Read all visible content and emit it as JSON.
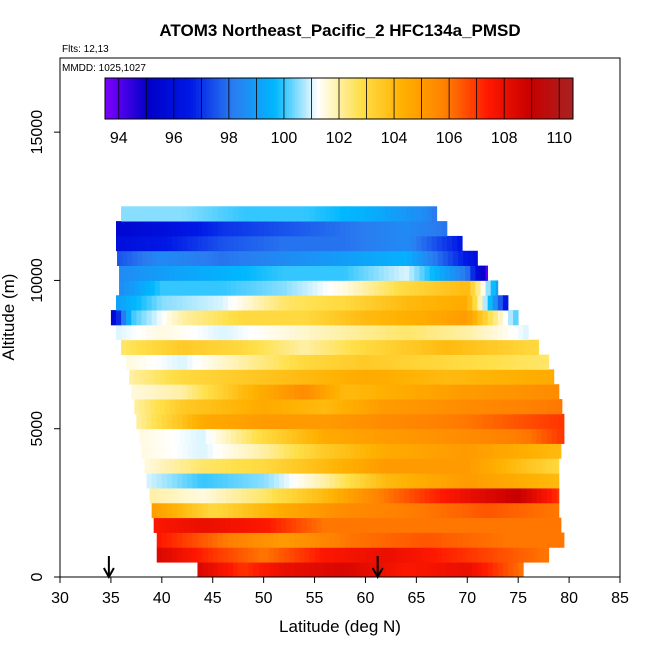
{
  "chart_data": {
    "type": "heatmap",
    "title": "ATOM3 Northeast_Pacific_2 HFC134a_PMSD",
    "flights_label": "Flts: 12,13",
    "dates_label": "MMDD: 1025,1027",
    "xlabel": "Latitude (deg N)",
    "ylabel": "Altitude (m)",
    "xlim": [
      30,
      85
    ],
    "ylim": [
      0,
      17500
    ],
    "xticks": [
      "30",
      "35",
      "40",
      "45",
      "50",
      "55",
      "60",
      "65",
      "70",
      "75",
      "80",
      "85"
    ],
    "yticks": [
      "0",
      "5000",
      "10000",
      "15000"
    ],
    "colorbar": {
      "range": [
        93.5,
        110.5
      ],
      "tick_labels": [
        "94",
        "96",
        "98",
        "100",
        "102",
        "104",
        "106",
        "108",
        "110"
      ],
      "colors": [
        "#8000ff",
        "#0000c8",
        "#0018e6",
        "#2a7cf0",
        "#00b8ff",
        "#ffffff",
        "#ffe04a",
        "#ffb000",
        "#ff8000",
        "#ff1800",
        "#c80000",
        "#a82222"
      ]
    },
    "arrows_lat": [
      34.8,
      61.2
    ],
    "altitude_bin_m": 500,
    "bands": [
      {
        "alt": 250,
        "lat_min": 43.5,
        "lat_max": 75.5,
        "values": [
          {
            "lat": 43.5,
            "v": 108.5
          },
          {
            "lat": 48,
            "v": 107
          },
          {
            "lat": 52,
            "v": 108
          },
          {
            "lat": 58,
            "v": 108.5
          },
          {
            "lat": 64,
            "v": 107.5
          },
          {
            "lat": 70,
            "v": 108
          },
          {
            "lat": 75.5,
            "v": 106
          }
        ]
      },
      {
        "alt": 750,
        "lat_min": 39.5,
        "lat_max": 78,
        "values": [
          {
            "lat": 39.5,
            "v": 108.5
          },
          {
            "lat": 45,
            "v": 107
          },
          {
            "lat": 50,
            "v": 106
          },
          {
            "lat": 56,
            "v": 107.5
          },
          {
            "lat": 62,
            "v": 108
          },
          {
            "lat": 70,
            "v": 107
          },
          {
            "lat": 78,
            "v": 106
          }
        ]
      },
      {
        "alt": 1250,
        "lat_min": 39.5,
        "lat_max": 79.5,
        "values": [
          {
            "lat": 39.5,
            "v": 107.5
          },
          {
            "lat": 46,
            "v": 106
          },
          {
            "lat": 52,
            "v": 105
          },
          {
            "lat": 58,
            "v": 106
          },
          {
            "lat": 66,
            "v": 106.5
          },
          {
            "lat": 74,
            "v": 106
          },
          {
            "lat": 79.5,
            "v": 106
          }
        ]
      },
      {
        "alt": 1750,
        "lat_min": 39.2,
        "lat_max": 79.2,
        "values": [
          {
            "lat": 39.2,
            "v": 107.5
          },
          {
            "lat": 44,
            "v": 108
          },
          {
            "lat": 50,
            "v": 107.5
          },
          {
            "lat": 56,
            "v": 106
          },
          {
            "lat": 62,
            "v": 106
          },
          {
            "lat": 70,
            "v": 106
          },
          {
            "lat": 79.2,
            "v": 106
          }
        ]
      },
      {
        "alt": 2250,
        "lat_min": 39.0,
        "lat_max": 79.0,
        "values": [
          {
            "lat": 39,
            "v": 105
          },
          {
            "lat": 45,
            "v": 103
          },
          {
            "lat": 52,
            "v": 104.5
          },
          {
            "lat": 58,
            "v": 105.5
          },
          {
            "lat": 66,
            "v": 106
          },
          {
            "lat": 72,
            "v": 106.5
          },
          {
            "lat": 79,
            "v": 106
          }
        ]
      },
      {
        "alt": 2750,
        "lat_min": 38.8,
        "lat_max": 79.0,
        "values": [
          {
            "lat": 38.8,
            "v": 102
          },
          {
            "lat": 44,
            "v": 101.5
          },
          {
            "lat": 50,
            "v": 102.5
          },
          {
            "lat": 56,
            "v": 104
          },
          {
            "lat": 62,
            "v": 106
          },
          {
            "lat": 70,
            "v": 108
          },
          {
            "lat": 75,
            "v": 109
          },
          {
            "lat": 79,
            "v": 107
          }
        ]
      },
      {
        "alt": 3250,
        "lat_min": 38.5,
        "lat_max": 79.0,
        "values": [
          {
            "lat": 38.5,
            "v": 101
          },
          {
            "lat": 44,
            "v": 100
          },
          {
            "lat": 50,
            "v": 100.5
          },
          {
            "lat": 56,
            "v": 102
          },
          {
            "lat": 62,
            "v": 104
          },
          {
            "lat": 70,
            "v": 105
          },
          {
            "lat": 79,
            "v": 104
          }
        ]
      },
      {
        "alt": 3750,
        "lat_min": 38.3,
        "lat_max": 79.0,
        "values": [
          {
            "lat": 38.3,
            "v": 101.5
          },
          {
            "lat": 44,
            "v": 102.5
          },
          {
            "lat": 50,
            "v": 103
          },
          {
            "lat": 56,
            "v": 104
          },
          {
            "lat": 62,
            "v": 105
          },
          {
            "lat": 70,
            "v": 105
          },
          {
            "lat": 79,
            "v": 103
          }
        ]
      },
      {
        "alt": 4250,
        "lat_min": 38.0,
        "lat_max": 79.2,
        "values": [
          {
            "lat": 38,
            "v": 101.5
          },
          {
            "lat": 44,
            "v": 101
          },
          {
            "lat": 50,
            "v": 102
          },
          {
            "lat": 56,
            "v": 103.5
          },
          {
            "lat": 62,
            "v": 104.5
          },
          {
            "lat": 70,
            "v": 105
          },
          {
            "lat": 79.2,
            "v": 104
          }
        ]
      },
      {
        "alt": 4750,
        "lat_min": 37.8,
        "lat_max": 79.5,
        "values": [
          {
            "lat": 37.8,
            "v": 101.5
          },
          {
            "lat": 44,
            "v": 101
          },
          {
            "lat": 50,
            "v": 103
          },
          {
            "lat": 56,
            "v": 104.5
          },
          {
            "lat": 62,
            "v": 105
          },
          {
            "lat": 70,
            "v": 105.5
          },
          {
            "lat": 76,
            "v": 106
          },
          {
            "lat": 79.5,
            "v": 107
          }
        ]
      },
      {
        "alt": 5250,
        "lat_min": 37.5,
        "lat_max": 79.5,
        "values": [
          {
            "lat": 37.5,
            "v": 102
          },
          {
            "lat": 44,
            "v": 104.5
          },
          {
            "lat": 50,
            "v": 105
          },
          {
            "lat": 56,
            "v": 105
          },
          {
            "lat": 62,
            "v": 105.5
          },
          {
            "lat": 70,
            "v": 106
          },
          {
            "lat": 79.5,
            "v": 107
          }
        ]
      },
      {
        "alt": 5750,
        "lat_min": 37.3,
        "lat_max": 79.3,
        "values": [
          {
            "lat": 37.3,
            "v": 102
          },
          {
            "lat": 42,
            "v": 103.5
          },
          {
            "lat": 50,
            "v": 104.5
          },
          {
            "lat": 56,
            "v": 104
          },
          {
            "lat": 62,
            "v": 105
          },
          {
            "lat": 70,
            "v": 105.5
          },
          {
            "lat": 79.3,
            "v": 106
          }
        ]
      },
      {
        "alt": 6250,
        "lat_min": 37.0,
        "lat_max": 79.0,
        "values": [
          {
            "lat": 37,
            "v": 101.5
          },
          {
            "lat": 42,
            "v": 102
          },
          {
            "lat": 48,
            "v": 104
          },
          {
            "lat": 54,
            "v": 105.5
          },
          {
            "lat": 58,
            "v": 104
          },
          {
            "lat": 64,
            "v": 104.5
          },
          {
            "lat": 70,
            "v": 105
          },
          {
            "lat": 79,
            "v": 105.5
          }
        ]
      },
      {
        "alt": 6750,
        "lat_min": 36.8,
        "lat_max": 78.5,
        "values": [
          {
            "lat": 36.8,
            "v": 102
          },
          {
            "lat": 42,
            "v": 103
          },
          {
            "lat": 48,
            "v": 103.5
          },
          {
            "lat": 54,
            "v": 104
          },
          {
            "lat": 60,
            "v": 104.5
          },
          {
            "lat": 68,
            "v": 104
          },
          {
            "lat": 78.5,
            "v": 104.5
          }
        ]
      },
      {
        "alt": 7250,
        "lat_min": 36.5,
        "lat_max": 78.0,
        "values": [
          {
            "lat": 36.5,
            "v": 101.5
          },
          {
            "lat": 42,
            "v": 101
          },
          {
            "lat": 48,
            "v": 102
          },
          {
            "lat": 54,
            "v": 103
          },
          {
            "lat": 60,
            "v": 103.5
          },
          {
            "lat": 68,
            "v": 103
          },
          {
            "lat": 78,
            "v": 102.5
          }
        ]
      },
      {
        "alt": 7750,
        "lat_min": 36.0,
        "lat_max": 77.0,
        "values": [
          {
            "lat": 36,
            "v": 102.5
          },
          {
            "lat": 42,
            "v": 103.5
          },
          {
            "lat": 48,
            "v": 103
          },
          {
            "lat": 54,
            "v": 102
          },
          {
            "lat": 60,
            "v": 103
          },
          {
            "lat": 68,
            "v": 104
          },
          {
            "lat": 77,
            "v": 103
          }
        ]
      },
      {
        "alt": 8250,
        "lat_min": 35.5,
        "lat_max": 76.0,
        "values": [
          {
            "lat": 35.5,
            "v": 101
          },
          {
            "lat": 40,
            "v": 101.5
          },
          {
            "lat": 46,
            "v": 101
          },
          {
            "lat": 52,
            "v": 101.5
          },
          {
            "lat": 58,
            "v": 102
          },
          {
            "lat": 64,
            "v": 102.5
          },
          {
            "lat": 70,
            "v": 102
          },
          {
            "lat": 76,
            "v": 101
          }
        ]
      },
      {
        "alt": 8750,
        "lat_min": 35.0,
        "lat_max": 75.0,
        "values": [
          {
            "lat": 35,
            "v": 95
          },
          {
            "lat": 37,
            "v": 100
          },
          {
            "lat": 42,
            "v": 102
          },
          {
            "lat": 48,
            "v": 103
          },
          {
            "lat": 54,
            "v": 103
          },
          {
            "lat": 60,
            "v": 104
          },
          {
            "lat": 66,
            "v": 104.5
          },
          {
            "lat": 70,
            "v": 105
          },
          {
            "lat": 75,
            "v": 100
          }
        ]
      },
      {
        "alt": 9250,
        "lat_min": 35.5,
        "lat_max": 74.0,
        "values": [
          {
            "lat": 35.5,
            "v": 99
          },
          {
            "lat": 40,
            "v": 100.5
          },
          {
            "lat": 46,
            "v": 101
          },
          {
            "lat": 52,
            "v": 102.5
          },
          {
            "lat": 58,
            "v": 103
          },
          {
            "lat": 64,
            "v": 104
          },
          {
            "lat": 70,
            "v": 104.5
          },
          {
            "lat": 74,
            "v": 96
          }
        ]
      },
      {
        "alt": 9750,
        "lat_min": 35.8,
        "lat_max": 73.0,
        "values": [
          {
            "lat": 35.8,
            "v": 98.5
          },
          {
            "lat": 40,
            "v": 100
          },
          {
            "lat": 46,
            "v": 100
          },
          {
            "lat": 52,
            "v": 100.5
          },
          {
            "lat": 58,
            "v": 101.5
          },
          {
            "lat": 64,
            "v": 103
          },
          {
            "lat": 70,
            "v": 104
          },
          {
            "lat": 73,
            "v": 99
          }
        ]
      },
      {
        "alt": 10250,
        "lat_min": 35.8,
        "lat_max": 72.0,
        "values": [
          {
            "lat": 35.8,
            "v": 98.5
          },
          {
            "lat": 40,
            "v": 99
          },
          {
            "lat": 46,
            "v": 99.5
          },
          {
            "lat": 52,
            "v": 100
          },
          {
            "lat": 58,
            "v": 100
          },
          {
            "lat": 64,
            "v": 101
          },
          {
            "lat": 70,
            "v": 98
          },
          {
            "lat": 72,
            "v": 94
          }
        ]
      },
      {
        "alt": 10750,
        "lat_min": 35.6,
        "lat_max": 71.0,
        "values": [
          {
            "lat": 35.6,
            "v": 97.5
          },
          {
            "lat": 40,
            "v": 98.5
          },
          {
            "lat": 46,
            "v": 98
          },
          {
            "lat": 52,
            "v": 98.5
          },
          {
            "lat": 58,
            "v": 99
          },
          {
            "lat": 64,
            "v": 99.5
          },
          {
            "lat": 71,
            "v": 96
          }
        ]
      },
      {
        "alt": 11250,
        "lat_min": 35.5,
        "lat_max": 69.5,
        "values": [
          {
            "lat": 35.5,
            "v": 96
          },
          {
            "lat": 40,
            "v": 96.5
          },
          {
            "lat": 46,
            "v": 97.5
          },
          {
            "lat": 52,
            "v": 98
          },
          {
            "lat": 58,
            "v": 98
          },
          {
            "lat": 64,
            "v": 98.5
          },
          {
            "lat": 69.5,
            "v": 96.5
          }
        ]
      },
      {
        "alt": 11750,
        "lat_min": 35.5,
        "lat_max": 68.0,
        "values": [
          {
            "lat": 35.5,
            "v": 95.5
          },
          {
            "lat": 40,
            "v": 96
          },
          {
            "lat": 46,
            "v": 97
          },
          {
            "lat": 52,
            "v": 97.5
          },
          {
            "lat": 58,
            "v": 98
          },
          {
            "lat": 64,
            "v": 98.5
          },
          {
            "lat": 68,
            "v": 98
          }
        ]
      },
      {
        "alt": 12250,
        "lat_min": 36.0,
        "lat_max": 67.0,
        "values": [
          {
            "lat": 36,
            "v": 100.5
          },
          {
            "lat": 42,
            "v": 100.5
          },
          {
            "lat": 48,
            "v": 100
          },
          {
            "lat": 54,
            "v": 100
          },
          {
            "lat": 60,
            "v": 99.5
          },
          {
            "lat": 66,
            "v": 98.5
          },
          {
            "lat": 67,
            "v": 98
          }
        ]
      }
    ]
  }
}
